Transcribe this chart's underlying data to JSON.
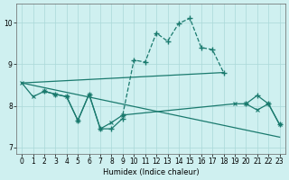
{
  "bg_color": "#cff0f0",
  "grid_color": "#aad8d8",
  "line_color": "#1a7a6e",
  "xlabel": "Humidex (Indice chaleur)",
  "xlim": [
    -0.5,
    23.5
  ],
  "ylim": [
    6.85,
    10.45
  ],
  "yticks": [
    7,
    8,
    9,
    10
  ],
  "xticks": [
    0,
    1,
    2,
    3,
    4,
    5,
    6,
    7,
    8,
    9,
    10,
    11,
    12,
    13,
    14,
    15,
    16,
    17,
    18,
    19,
    20,
    21,
    22,
    23
  ],
  "line_diagonal": {
    "x": [
      0,
      23
    ],
    "y": [
      8.55,
      7.25
    ]
  },
  "line_upper_flat": {
    "x": [
      0,
      18
    ],
    "y": [
      8.55,
      8.8
    ]
  },
  "line_dashed_curve": {
    "x": [
      9,
      10,
      11,
      12,
      13,
      14,
      15,
      16,
      17,
      18
    ],
    "y": [
      7.78,
      9.1,
      9.05,
      9.75,
      9.55,
      9.98,
      10.1,
      9.4,
      9.35,
      8.8
    ]
  },
  "line_xmarker": {
    "x": [
      0,
      1,
      2,
      3,
      4,
      5,
      6,
      7,
      8,
      9,
      19,
      20,
      21,
      22,
      23
    ],
    "y": [
      8.55,
      8.22,
      8.35,
      8.28,
      8.22,
      7.65,
      8.28,
      7.45,
      7.6,
      7.78,
      8.05,
      8.05,
      7.9,
      8.05,
      7.55
    ]
  },
  "line_plus_zigzag": {
    "x": [
      2,
      3,
      4,
      5,
      6,
      7,
      8,
      9
    ],
    "y": [
      8.35,
      8.28,
      8.22,
      7.65,
      8.28,
      7.45,
      7.45,
      7.7
    ]
  },
  "line_right_plus": {
    "x": [
      20,
      21,
      22,
      23
    ],
    "y": [
      8.05,
      8.25,
      8.05,
      7.55
    ]
  }
}
